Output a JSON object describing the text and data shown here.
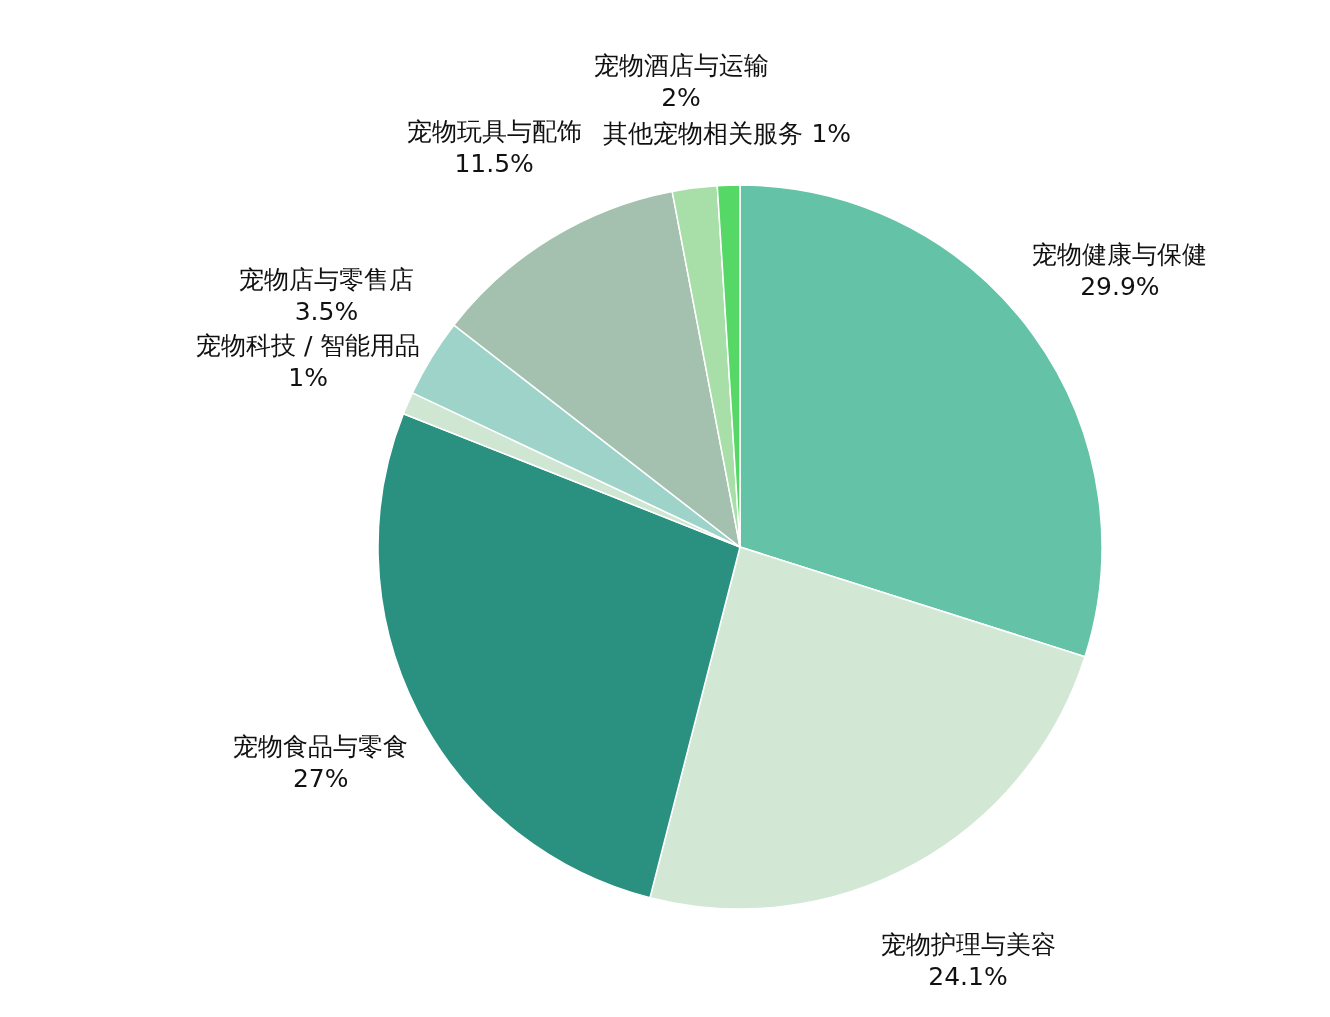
{
  "chart_data": {
    "type": "pie",
    "categories": [
      "宠物健康与保健",
      "宠物护理与美容",
      "宠物食品与零食",
      "宠物科技 / 智能用品",
      "宠物店与零售店",
      "宠物玩具与配饰",
      "宠物酒店与运输",
      "其他宠物相关服务"
    ],
    "values": [
      29.9,
      24.1,
      27,
      1,
      3.5,
      11.5,
      2,
      1
    ],
    "colors": [
      "#64c2a6",
      "#d2e8d5",
      "#2a9080",
      "#cfe6d2",
      "#9dd3c9",
      "#a4c0ae",
      "#a8dea8",
      "#55d865"
    ],
    "value_labels": [
      "29.9%",
      "24.1%",
      "27%",
      "1%",
      "3.5%",
      "11.5%",
      "2%",
      "1%"
    ],
    "legend": false
  }
}
